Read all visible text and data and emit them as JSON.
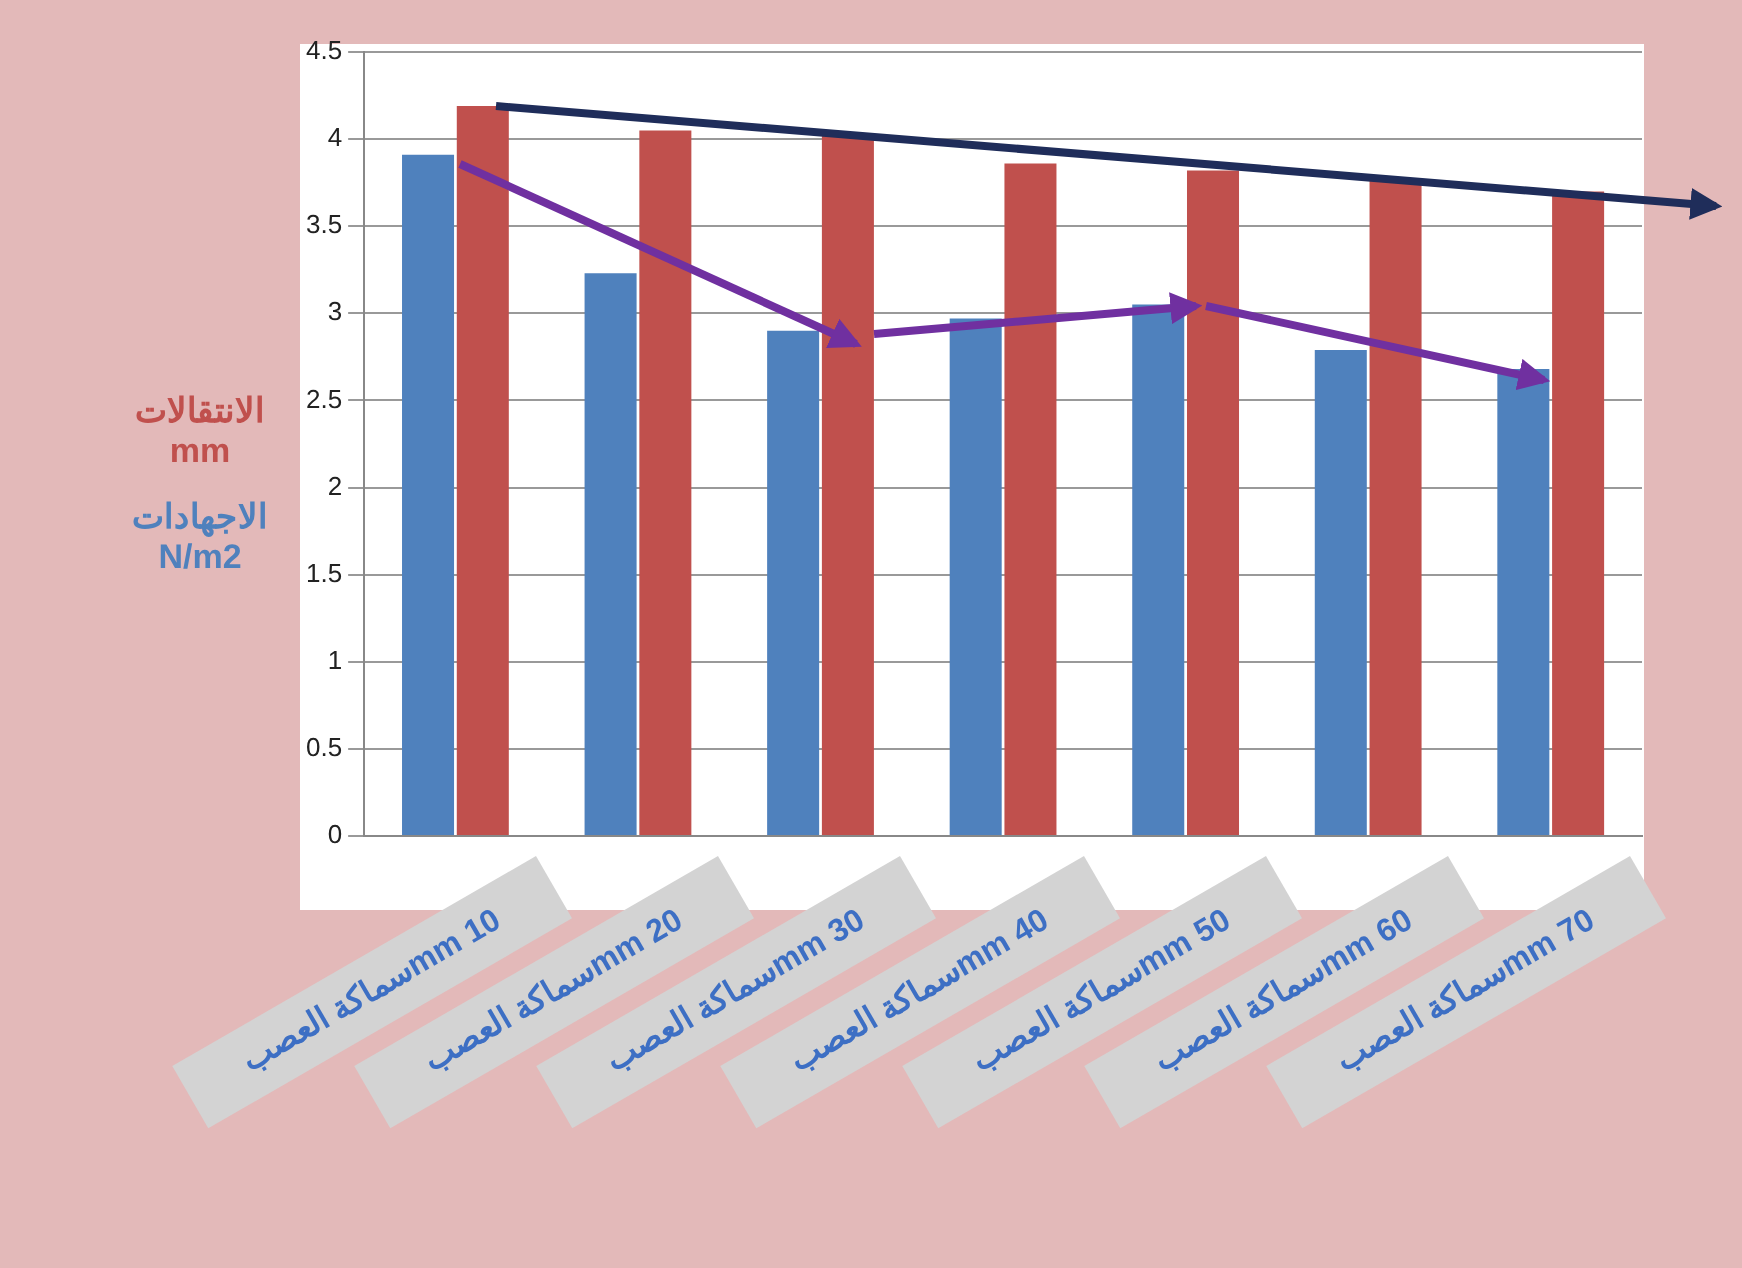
{
  "chart_data": {
    "type": "bar",
    "categories": [
      "10 mmسماكة العصب",
      "20 mmسماكة العصب",
      "30 mmسماكة العصب",
      "40 mmسماكة العصب",
      "50 mmسماكة العصب",
      "60 mmسماكة العصب",
      "70 mmسماكة العصب"
    ],
    "series": [
      {
        "name": "الاجهادات N/m2",
        "color": "#4f81bd",
        "values": [
          3.91,
          3.23,
          2.9,
          2.97,
          3.05,
          2.79,
          2.68
        ]
      },
      {
        "name": "الانتقالات mm",
        "color": "#c0504d",
        "values": [
          4.19,
          4.05,
          4.02,
          3.86,
          3.82,
          3.77,
          3.7
        ]
      }
    ],
    "ylim": [
      0,
      4.5
    ],
    "yticks": [
      0,
      0.5,
      1,
      1.5,
      2,
      2.5,
      3,
      3.5,
      4,
      4.5
    ],
    "grid": "y",
    "legend": "left"
  }
}
